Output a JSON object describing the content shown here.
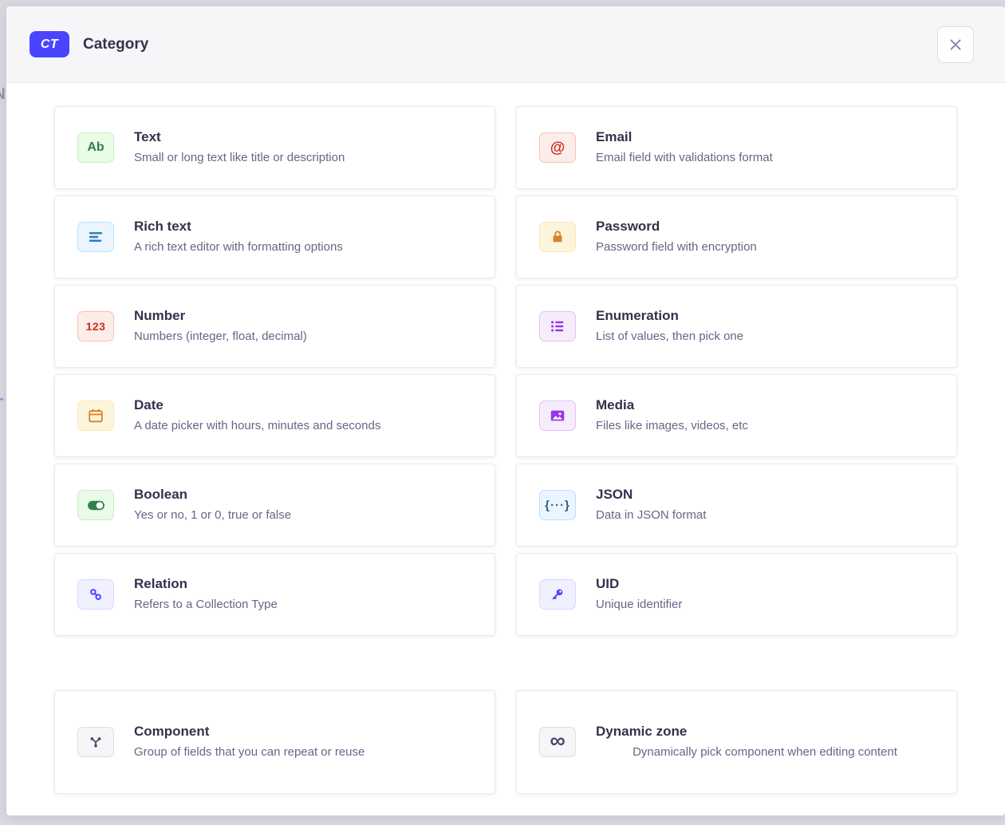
{
  "header": {
    "badge": "CT",
    "title": "Category"
  },
  "background_fragments": [
    "N",
    "+"
  ],
  "colors": {
    "accent": "#4945ff",
    "overlay": "#d9d9e2",
    "header_bg": "#f6f6f9",
    "card_border": "#eaeaef",
    "title_text": "#32324d",
    "description_text": "#666687",
    "close_icon": "#8e8ea9"
  },
  "sections": {
    "default_fields": [
      {
        "id": "text",
        "title": "Text",
        "description": "Small or long text like title or description",
        "icon": "ab-text-icon",
        "icon_text": "Ab",
        "tile": {
          "bg": "#eafbe7",
          "border": "#c6f0c2",
          "fg": "#328048"
        }
      },
      {
        "id": "email",
        "title": "Email",
        "description": "Email field with validations format",
        "icon": "at-sign-icon",
        "icon_text": "@",
        "tile": {
          "bg": "#fdede8",
          "border": "#f5c0b8",
          "fg": "#d02b20"
        }
      },
      {
        "id": "richtext",
        "title": "Rich text",
        "description": "A rich text editor with formatting options",
        "icon": "richtext-lines-icon",
        "tile": {
          "bg": "#eaf5ff",
          "border": "#b8e1ff",
          "fg": "#2e7cba"
        }
      },
      {
        "id": "password",
        "title": "Password",
        "description": "Password field with encryption",
        "icon": "lock-icon",
        "tile": {
          "bg": "#fdf4dc",
          "border": "#fae7b9",
          "fg": "#d9822f"
        }
      },
      {
        "id": "number",
        "title": "Number",
        "description": "Numbers (integer, float, decimal)",
        "icon": "number-123-icon",
        "icon_text": "123",
        "tile": {
          "bg": "#fdede8",
          "border": "#f5c0b8",
          "fg": "#d02b20"
        }
      },
      {
        "id": "enumeration",
        "title": "Enumeration",
        "description": "List of values, then pick one",
        "icon": "bullet-list-icon",
        "tile": {
          "bg": "#f6ecfc",
          "border": "#e0c1f4",
          "fg": "#9736e8"
        }
      },
      {
        "id": "date",
        "title": "Date",
        "description": "A date picker with hours, minutes and seconds",
        "icon": "calendar-icon",
        "tile": {
          "bg": "#fdf4dc",
          "border": "#fae7b9",
          "fg": "#d9822f"
        }
      },
      {
        "id": "media",
        "title": "Media",
        "description": "Files like images, videos, etc",
        "icon": "picture-icon",
        "tile": {
          "bg": "#f6ecfc",
          "border": "#e0c1f4",
          "fg": "#9736e8"
        }
      },
      {
        "id": "boolean",
        "title": "Boolean",
        "description": "Yes or no, 1 or 0, true or false",
        "icon": "toggle-on-icon",
        "tile": {
          "bg": "#eafbe7",
          "border": "#c6f0c2",
          "fg": "#328048"
        }
      },
      {
        "id": "json",
        "title": "JSON",
        "description": "Data in JSON format",
        "icon": "json-braces-icon",
        "icon_text": "{···}",
        "tile": {
          "bg": "#eaf5ff",
          "border": "#b8e1ff",
          "fg": "#2d5f87"
        }
      },
      {
        "id": "relation",
        "title": "Relation",
        "description": "Refers to a Collection Type",
        "icon": "chain-link-icon",
        "tile": {
          "bg": "#f0f0ff",
          "border": "#d9d8ff",
          "fg": "#4945ff"
        }
      },
      {
        "id": "uid",
        "title": "UID",
        "description": "Unique identifier",
        "icon": "key-icon",
        "tile": {
          "bg": "#f0f0ff",
          "border": "#d9d8ff",
          "fg": "#4945ff"
        }
      }
    ],
    "advanced_fields": [
      {
        "id": "component",
        "title": "Component",
        "description": "Group of fields that you can repeat or reuse",
        "icon": "branch-icon",
        "tile": {
          "bg": "#f6f6f9",
          "border": "#dcdce4",
          "fg": "#4a4a6a"
        }
      },
      {
        "id": "dynamiczone",
        "title": "Dynamic zone",
        "description": "Dynamically pick component when editing content",
        "icon": "infinity-icon",
        "icon_text": "∞",
        "description_align": "center",
        "tile": {
          "bg": "#f6f6f9",
          "border": "#dcdce4",
          "fg": "#4a4a6a"
        }
      }
    ]
  }
}
